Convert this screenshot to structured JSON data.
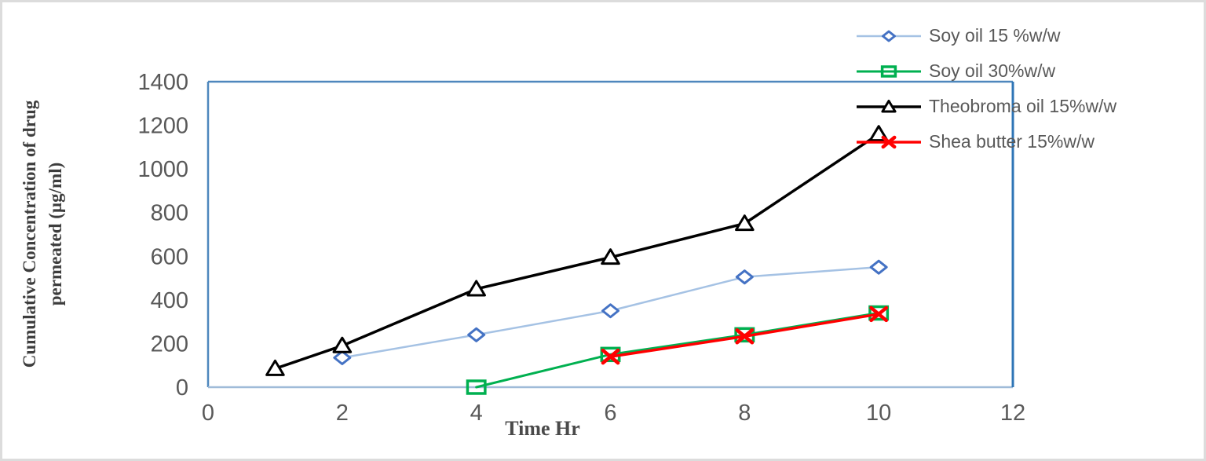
{
  "figure": {
    "background": "#FFFFFF",
    "outer_border_color": "#DCDCDC"
  },
  "chart_data": {
    "type": "line",
    "title": "",
    "xlabel": "Time Hr",
    "ylabel": "Cumulative Concentration of drug permeated (µg/ml)",
    "ylabel_line1": "Cumulative Concentration of drug",
    "ylabel_line2": "permeated (µg/ml)",
    "xlim": [
      0,
      12
    ],
    "ylim": [
      0,
      1400
    ],
    "x_ticks": [
      0,
      2,
      4,
      6,
      8,
      10,
      12
    ],
    "y_ticks": [
      0,
      200,
      400,
      600,
      800,
      1000,
      1200,
      1400
    ],
    "grid": false,
    "legend_position": "top-right",
    "tick_label_color": "#595959",
    "plot_border_color_right": "#2E75B6",
    "plot_border_color_topleft": "#4E87BD",
    "plot_border_color_bottom": "#9FBBD8",
    "series": [
      {
        "name": "Soy oil 15 %w/w",
        "marker": "diamond",
        "line_color": "#A5C2E4",
        "marker_color": "#4472C4",
        "points": [
          [
            2,
            135
          ],
          [
            4,
            240
          ],
          [
            6,
            350
          ],
          [
            8,
            505
          ],
          [
            10,
            550
          ]
        ]
      },
      {
        "name": "Soy oil 30%w/w",
        "marker": "square",
        "line_color": "#00B050",
        "marker_color": "#00B050",
        "points": [
          [
            4,
            0
          ],
          [
            6,
            150
          ],
          [
            8,
            240
          ],
          [
            10,
            340
          ]
        ]
      },
      {
        "name": "Theobroma oil 15%w/w",
        "marker": "triangle",
        "line_color": "#000000",
        "marker_color": "#000000",
        "points": [
          [
            1,
            85
          ],
          [
            2,
            190
          ],
          [
            4,
            450
          ],
          [
            6,
            595
          ],
          [
            8,
            750
          ],
          [
            10,
            1160
          ]
        ]
      },
      {
        "name": "Shea butter 15%w/w",
        "marker": "x",
        "line_color": "#FF0000",
        "marker_color": "#FF0000",
        "points": [
          [
            6,
            140
          ],
          [
            8,
            233
          ],
          [
            10,
            335
          ]
        ]
      }
    ]
  }
}
